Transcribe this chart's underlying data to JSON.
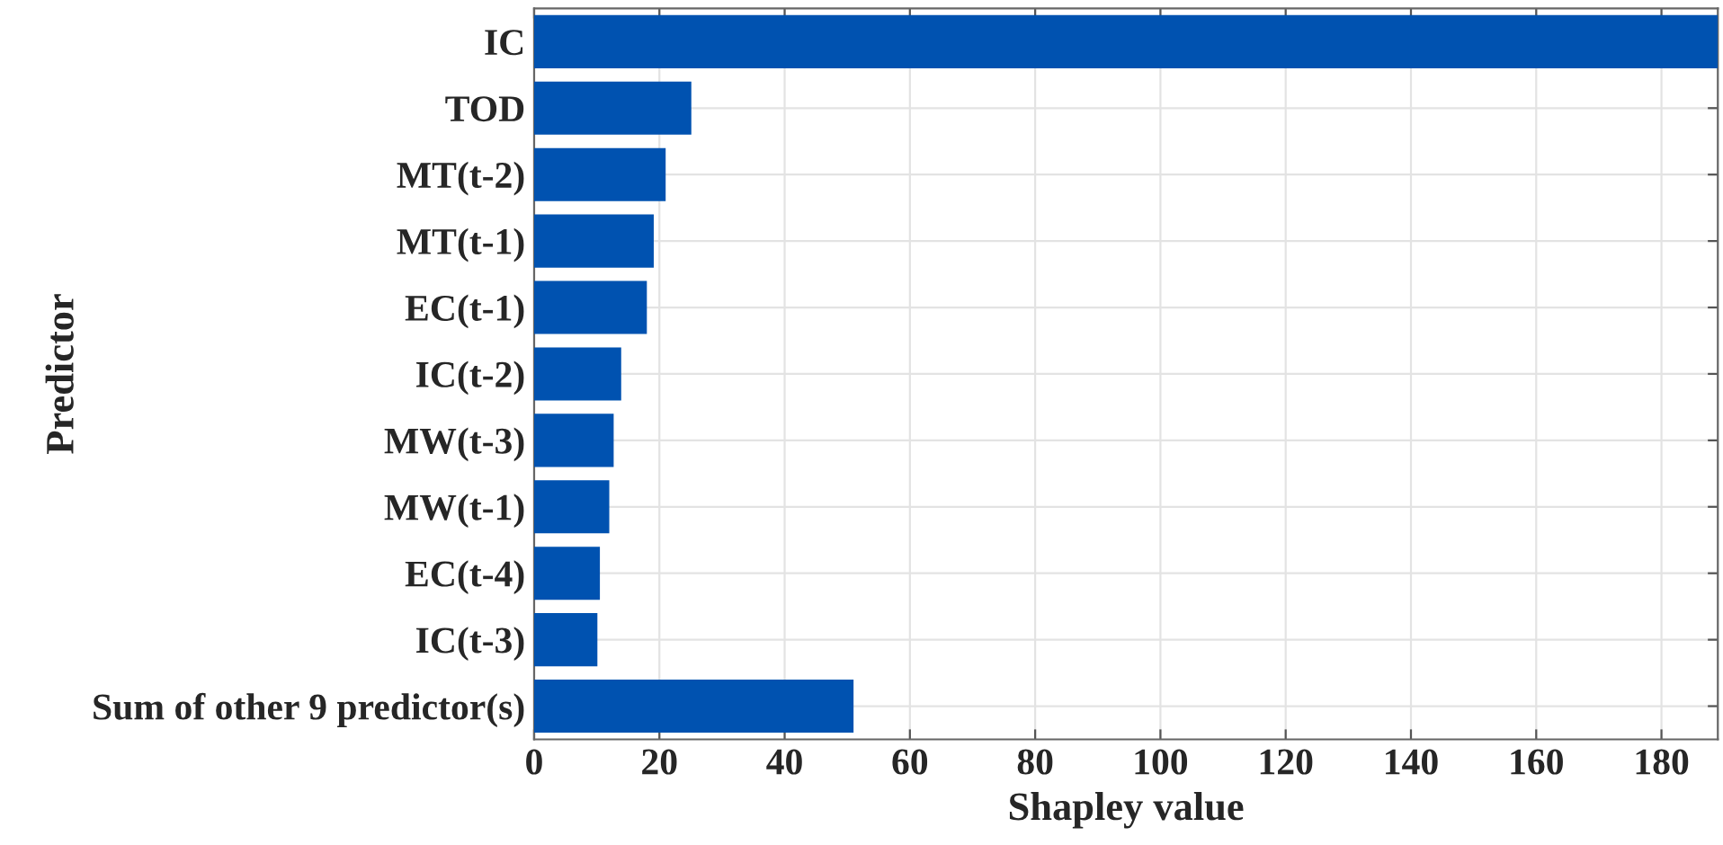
{
  "chart_data": {
    "type": "bar",
    "orientation": "horizontal",
    "xlabel": "Shapley value",
    "ylabel": "Predictor",
    "categories": [
      "IC",
      "TOD",
      "MT(t-2)",
      "MT(t-1)",
      "EC(t-1)",
      "IC(t-2)",
      "MW(t-3)",
      "MW(t-1)",
      "EC(t-4)",
      "IC(t-3)",
      "Sum of other 9 predictor(s)"
    ],
    "values": [
      189,
      25.1,
      21.0,
      19.1,
      18.0,
      13.9,
      12.7,
      12.0,
      10.5,
      10.1,
      51.0
    ],
    "color": "#0052b0",
    "xlim": [
      0,
      189
    ],
    "xticks": [
      0,
      20,
      40,
      60,
      80,
      100,
      120,
      140,
      160,
      180
    ],
    "grid": true
  }
}
